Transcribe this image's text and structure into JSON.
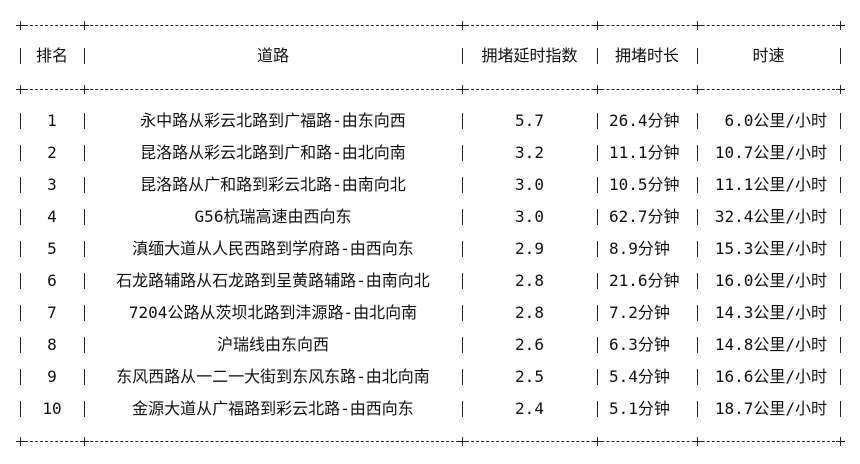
{
  "table": {
    "headers": [
      "排名",
      "道路",
      "拥堵延时指数",
      "拥堵时长",
      "时速"
    ],
    "rows": [
      {
        "rank": "1",
        "road": "永中路从彩云北路到广福路-由东向西",
        "index": "5.7",
        "duration": "26.4分钟",
        "speed": "6.0公里/小时"
      },
      {
        "rank": "2",
        "road": "昆洛路从彩云北路到广和路-由北向南",
        "index": "3.2",
        "duration": "11.1分钟",
        "speed": "10.7公里/小时"
      },
      {
        "rank": "3",
        "road": "昆洛路从广和路到彩云北路-由南向北",
        "index": "3.0",
        "duration": "10.5分钟",
        "speed": "11.1公里/小时"
      },
      {
        "rank": "4",
        "road": "G56杭瑞高速由西向东",
        "index": "3.0",
        "duration": "62.7分钟",
        "speed": "32.4公里/小时"
      },
      {
        "rank": "5",
        "road": "滇缅大道从人民西路到学府路-由西向东",
        "index": "2.9",
        "duration": "8.9分钟",
        "speed": "15.3公里/小时"
      },
      {
        "rank": "6",
        "road": "石龙路辅路从石龙路到呈黄路辅路-由南向北",
        "index": "2.8",
        "duration": "21.6分钟",
        "speed": "16.0公里/小时"
      },
      {
        "rank": "7",
        "road": "7204公路从茨坝北路到沣源路-由北向南",
        "index": "2.8",
        "duration": "7.2分钟",
        "speed": "14.3公里/小时"
      },
      {
        "rank": "8",
        "road": "沪瑞线由东向西",
        "index": "2.6",
        "duration": "6.3分钟",
        "speed": "14.8公里/小时"
      },
      {
        "rank": "9",
        "road": "东风西路从一二一大街到东风东路-由北向南",
        "index": "2.5",
        "duration": "5.4分钟",
        "speed": "16.6公里/小时"
      },
      {
        "rank": "10",
        "road": "金源大道从广福路到彩云北路-由西向东",
        "index": "2.4",
        "duration": "5.1分钟",
        "speed": "18.7公里/小时"
      }
    ]
  }
}
